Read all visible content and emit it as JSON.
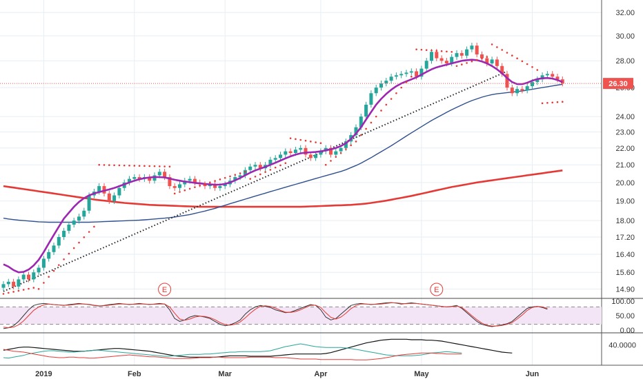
{
  "chart_data": {
    "type": "candlestick",
    "log_scale": true,
    "grid": true,
    "colors": {
      "up": "#26a69a",
      "down": "#ef5350",
      "ma_fast": "#9c27b0",
      "ma_mid": "#2f4f8f",
      "ma_slow": "#e53935",
      "trendline": "#222222",
      "psar": "#e53935",
      "stoch_k": "#333333",
      "stoch_d": "#e53935",
      "adx": "#111111",
      "di_plus": "#26a69a",
      "di_minus": "#e53935",
      "stoch_band": "#f3e5f5"
    },
    "price_axis": {
      "ylim": [
        14.6,
        33.0
      ],
      "ticks": [
        "32.00",
        "30.00",
        "28.00",
        "26.00",
        "24.00",
        "23.00",
        "22.00",
        "21.00",
        "20.00",
        "19.00",
        "18.00",
        "17.20",
        "16.40",
        "15.60",
        "14.90"
      ]
    },
    "x_axis": {
      "labels": [
        "2019",
        "Feb",
        "Mar",
        "Apr",
        "May",
        "Jun"
      ],
      "label_bars": [
        8,
        26,
        44,
        63,
        83,
        105
      ]
    },
    "last_price": "26.30",
    "earnings": [
      {
        "label": "E",
        "bar": 32
      },
      {
        "label": "E",
        "bar": 86
      }
    ],
    "closes": [
      15.1,
      15.2,
      15.0,
      15.3,
      15.5,
      15.3,
      15.6,
      15.8,
      16.2,
      16.5,
      16.8,
      17.2,
      17.5,
      17.8,
      18.0,
      18.2,
      18.5,
      19.3,
      19.5,
      19.8,
      19.4,
      19.0,
      19.3,
      19.7,
      20.0,
      20.2,
      20.3,
      20.2,
      20.3,
      20.1,
      20.4,
      20.6,
      20.3,
      19.8,
      19.7,
      19.9,
      20.1,
      20.2,
      20.0,
      19.9,
      19.8,
      19.9,
      19.7,
      19.8,
      19.9,
      20.1,
      20.3,
      20.4,
      20.7,
      20.9,
      21.0,
      20.8,
      21.0,
      21.3,
      21.4,
      21.6,
      21.8,
      21.7,
      21.9,
      22.0,
      21.6,
      21.4,
      21.6,
      21.8,
      22.0,
      21.6,
      21.8,
      22.0,
      22.4,
      22.8,
      23.3,
      24.0,
      24.8,
      25.6,
      26.0,
      26.3,
      26.5,
      26.8,
      26.9,
      27.0,
      27.1,
      27.2,
      26.8,
      27.4,
      28.0,
      28.7,
      28.2,
      28.0,
      27.8,
      28.3,
      28.6,
      28.4,
      28.9,
      29.2,
      28.5,
      28.2,
      27.8,
      28.1,
      27.6,
      27.0,
      26.0,
      25.6,
      25.9,
      25.8,
      26.1,
      26.4,
      26.6,
      26.9,
      27.0,
      26.8,
      26.6,
      26.3
    ],
    "ma_fast": [
      15.95,
      15.85,
      15.7,
      15.6,
      15.62,
      15.72,
      15.9,
      16.15,
      16.5,
      16.9,
      17.3,
      17.7,
      18.1,
      18.4,
      18.7,
      18.95,
      19.15,
      19.3,
      19.4,
      19.48,
      19.55,
      19.62,
      19.7,
      19.8,
      19.9,
      20.0,
      20.1,
      20.18,
      20.24,
      20.28,
      20.3,
      20.3,
      20.28,
      20.22,
      20.15,
      20.1,
      20.05,
      20.02,
      19.98,
      19.95,
      19.92,
      19.9,
      19.88,
      19.88,
      19.92,
      20.0,
      20.12,
      20.25,
      20.4,
      20.55,
      20.68,
      20.78,
      20.88,
      21.0,
      21.12,
      21.25,
      21.38,
      21.5,
      21.6,
      21.68,
      21.72,
      21.74,
      21.76,
      21.8,
      21.86,
      21.92,
      22.0,
      22.12,
      22.3,
      22.55,
      22.9,
      23.3,
      23.8,
      24.3,
      24.8,
      25.2,
      25.55,
      25.85,
      26.1,
      26.3,
      26.45,
      26.6,
      26.75,
      26.95,
      27.15,
      27.35,
      27.5,
      27.6,
      27.7,
      27.8,
      27.9,
      28.0,
      28.05,
      28.08,
      28.05,
      27.95,
      27.8,
      27.6,
      27.35,
      27.05,
      26.7,
      26.4,
      26.25,
      26.25,
      26.35,
      26.5,
      26.62,
      26.68,
      26.7,
      26.66,
      26.55,
      26.4
    ],
    "ma_mid": [
      18.12,
      18.08,
      18.05,
      18.02,
      18.0,
      17.98,
      17.96,
      17.94,
      17.93,
      17.92,
      17.92,
      17.92,
      17.92,
      17.92,
      17.92,
      17.92,
      17.92,
      17.92,
      17.93,
      17.94,
      17.95,
      17.96,
      17.97,
      17.98,
      17.99,
      18.0,
      18.01,
      18.02,
      18.04,
      18.06,
      18.08,
      18.1,
      18.12,
      18.15,
      18.18,
      18.22,
      18.26,
      18.3,
      18.36,
      18.42,
      18.48,
      18.55,
      18.62,
      18.7,
      18.78,
      18.86,
      18.94,
      19.02,
      19.1,
      19.18,
      19.26,
      19.34,
      19.42,
      19.5,
      19.58,
      19.66,
      19.74,
      19.82,
      19.9,
      19.98,
      20.06,
      20.14,
      20.22,
      20.3,
      20.38,
      20.46,
      20.54,
      20.62,
      20.72,
      20.84,
      20.96,
      21.1,
      21.26,
      21.42,
      21.6,
      21.78,
      21.96,
      22.14,
      22.34,
      22.54,
      22.74,
      22.94,
      23.14,
      23.34,
      23.54,
      23.74,
      23.92,
      24.1,
      24.28,
      24.46,
      24.62,
      24.78,
      24.94,
      25.08,
      25.2,
      25.32,
      25.42,
      25.5,
      25.56,
      25.6,
      25.64,
      25.68,
      25.72,
      25.76,
      25.82,
      25.88,
      25.94,
      26.0,
      26.06,
      26.12,
      26.18,
      26.24
    ],
    "ma_slow": [
      19.8,
      19.76,
      19.72,
      19.68,
      19.64,
      19.6,
      19.56,
      19.52,
      19.48,
      19.44,
      19.4,
      19.36,
      19.32,
      19.28,
      19.24,
      19.2,
      19.16,
      19.12,
      19.08,
      19.05,
      19.02,
      18.99,
      18.96,
      18.93,
      18.9,
      18.88,
      18.86,
      18.84,
      18.82,
      18.8,
      18.79,
      18.78,
      18.77,
      18.76,
      18.75,
      18.74,
      18.73,
      18.72,
      18.71,
      18.7,
      18.7,
      18.7,
      18.7,
      18.7,
      18.7,
      18.7,
      18.7,
      18.7,
      18.7,
      18.7,
      18.7,
      18.7,
      18.7,
      18.7,
      18.7,
      18.7,
      18.7,
      18.7,
      18.7,
      18.7,
      18.71,
      18.72,
      18.73,
      18.74,
      18.75,
      18.76,
      18.77,
      18.78,
      18.79,
      18.8,
      18.82,
      18.84,
      18.87,
      18.9,
      18.94,
      18.98,
      19.02,
      19.07,
      19.12,
      19.17,
      19.22,
      19.27,
      19.33,
      19.39,
      19.45,
      19.51,
      19.57,
      19.63,
      19.69,
      19.75,
      19.8,
      19.85,
      19.9,
      19.95,
      20.0,
      20.04,
      20.08,
      20.12,
      20.16,
      20.2,
      20.24,
      20.28,
      20.32,
      20.36,
      20.4,
      20.44,
      20.48,
      20.52,
      20.56,
      20.6,
      20.64,
      20.68
    ],
    "trendline": {
      "start_bar": 0,
      "start_price": 14.8,
      "end_bar": 100,
      "end_price": 27.2
    },
    "psar": [
      {
        "seg": [
          0,
          6
        ],
        "from": 14.7,
        "to": 14.95
      },
      {
        "seg": [
          7,
          18
        ],
        "from": 14.9,
        "to": 17.7
      },
      {
        "seg": [
          19,
          33
        ],
        "from": 21.0,
        "to": 20.9
      },
      {
        "seg": [
          34,
          48
        ],
        "from": 19.4,
        "to": 20.6
      },
      {
        "seg": [
          49,
          56
        ],
        "from": 20.2,
        "to": 21.1
      },
      {
        "seg": [
          57,
          63
        ],
        "from": 22.6,
        "to": 22.3
      },
      {
        "seg": [
          64,
          70
        ],
        "from": 21.0,
        "to": 22.4
      },
      {
        "seg": [
          71,
          81
        ],
        "from": 22.8,
        "to": 26.8
      },
      {
        "seg": [
          82,
          89
        ],
        "from": 28.9,
        "to": 28.7
      },
      {
        "seg": [
          90,
          96
        ],
        "from": 27.6,
        "to": 28.3
      },
      {
        "seg": [
          97,
          106
        ],
        "from": 29.3,
        "to": 27.3
      },
      {
        "seg": [
          107,
          111
        ],
        "from": 24.9,
        "to": 25.0
      }
    ],
    "stoch": {
      "ticks": [
        "100.00",
        "50.00",
        "0.00"
      ],
      "bands": [
        80,
        20
      ],
      "k": [
        5,
        8,
        15,
        30,
        50,
        70,
        85,
        90,
        92,
        90,
        88,
        87,
        85,
        88,
        90,
        92,
        90,
        88,
        85,
        83,
        85,
        88,
        90,
        92,
        90,
        88,
        90,
        92,
        90,
        88,
        90,
        92,
        90,
        70,
        40,
        30,
        35,
        45,
        50,
        48,
        45,
        40,
        30,
        20,
        15,
        18,
        25,
        35,
        55,
        70,
        80,
        85,
        82,
        78,
        70,
        65,
        60,
        62,
        68,
        75,
        82,
        88,
        85,
        70,
        45,
        35,
        40,
        55,
        70,
        85,
        90,
        92,
        90,
        88,
        90,
        92,
        94,
        95,
        93,
        90,
        92,
        94,
        92,
        90,
        88,
        86,
        84,
        82,
        80,
        82,
        85,
        75,
        60,
        45,
        30,
        20,
        15,
        12,
        15,
        18,
        22,
        30,
        45,
        60,
        75,
        80,
        82,
        78,
        72
      ],
      "d": [
        10,
        8,
        10,
        18,
        32,
        50,
        68,
        80,
        87,
        90,
        88,
        87,
        86,
        86,
        88,
        90,
        90,
        89,
        86,
        84,
        84,
        86,
        88,
        90,
        90,
        89,
        89,
        90,
        90,
        89,
        89,
        90,
        90,
        80,
        58,
        38,
        34,
        38,
        45,
        48,
        47,
        43,
        36,
        26,
        19,
        17,
        20,
        28,
        42,
        58,
        72,
        82,
        84,
        82,
        76,
        68,
        62,
        61,
        64,
        70,
        78,
        85,
        86,
        78,
        60,
        44,
        38,
        45,
        58,
        74,
        85,
        90,
        90,
        89,
        89,
        90,
        92,
        94,
        94,
        92,
        91,
        92,
        92,
        90,
        88,
        86,
        84,
        82,
        80,
        81,
        83,
        78,
        65,
        50,
        36,
        24,
        17,
        14,
        14,
        16,
        20,
        26,
        38,
        52,
        68,
        78,
        82,
        80,
        75
      ]
    },
    "dmi": {
      "ticks": [
        "40.0000"
      ],
      "ylim": [
        0,
        60
      ],
      "adx": [
        28,
        30,
        32,
        34,
        35,
        35,
        34,
        33,
        32,
        31,
        30,
        29,
        28,
        27,
        26,
        26,
        26,
        27,
        28,
        29,
        30,
        31,
        32,
        32,
        31,
        30,
        29,
        28,
        27,
        26,
        24,
        22,
        20,
        18,
        16,
        15,
        14,
        13,
        13,
        13,
        13,
        13,
        13,
        14,
        15,
        16,
        16,
        16,
        16,
        15,
        15,
        15,
        15,
        15,
        16,
        17,
        18,
        19,
        20,
        20,
        20,
        20,
        20,
        20,
        21,
        23,
        26,
        29,
        32,
        35,
        38,
        41,
        44,
        46,
        48,
        50,
        51,
        52,
        52,
        52,
        52,
        51,
        51,
        51,
        50,
        50,
        49,
        48,
        46,
        44,
        42,
        40,
        38,
        36,
        34,
        32,
        30,
        28,
        26,
        24,
        23,
        22
      ],
      "di_plus": [
        12,
        11,
        13,
        15,
        17,
        20,
        22,
        24,
        26,
        27,
        27,
        26,
        25,
        24,
        24,
        25,
        26,
        27,
        28,
        28,
        27,
        26,
        25,
        24,
        23,
        22,
        21,
        20,
        19,
        18,
        17,
        16,
        15,
        15,
        16,
        17,
        18,
        19,
        19,
        19,
        20,
        20,
        21,
        22,
        23,
        24,
        24,
        25,
        25,
        25,
        25,
        25,
        26,
        27,
        30,
        33,
        36,
        38,
        40,
        42,
        40,
        38,
        36,
        35,
        34,
        34,
        34,
        34,
        33,
        32,
        30,
        28,
        26,
        24,
        22,
        20,
        18,
        17,
        16,
        16,
        16,
        16,
        17,
        18,
        20,
        22,
        23,
        24,
        25,
        24,
        23,
        22
      ],
      "di_minus": [
        30,
        28,
        26,
        25,
        24,
        22,
        20,
        18,
        16,
        14,
        13,
        12,
        12,
        13,
        13,
        12,
        12,
        11,
        11,
        12,
        13,
        14,
        15,
        16,
        17,
        18,
        17,
        16,
        15,
        14,
        14,
        13,
        12,
        11,
        10,
        10,
        10,
        10,
        11,
        12,
        12,
        12,
        13,
        13,
        12,
        12,
        12,
        12,
        12,
        13,
        13,
        13,
        13,
        13,
        12,
        12,
        12,
        11,
        10,
        9,
        9,
        9,
        9,
        8,
        8,
        8,
        8,
        8,
        8,
        8,
        7,
        7,
        7,
        8,
        9,
        10,
        12,
        14,
        16,
        18,
        19,
        20,
        21,
        22,
        22,
        22,
        21,
        21,
        20,
        20,
        20,
        20
      ]
    }
  }
}
